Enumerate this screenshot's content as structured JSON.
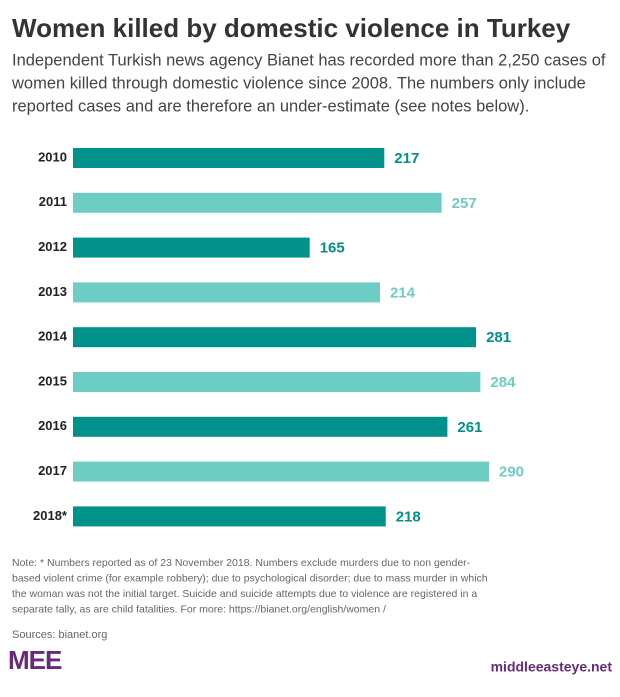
{
  "chart_data": {
    "type": "bar",
    "orientation": "horizontal",
    "title": "Women killed by domestic violence in Turkey",
    "subtitle": [
      "Independent Turkish news agency Bianet has recorded more than 2,250 cases of",
      "women killed through domestic violence since 2008. The numbers only include",
      "reported cases and are therefore an under-estimate (see notes below)."
    ],
    "categories": [
      "2010",
      "2011",
      "2012",
      "2013",
      "2014",
      "2015",
      "2016",
      "2017",
      "2018*"
    ],
    "values": [
      217,
      257,
      165,
      214,
      281,
      284,
      261,
      290,
      218
    ],
    "colors": [
      "#00918a",
      "#6dcdc4",
      "#00918a",
      "#6dcdc4",
      "#00918a",
      "#6dcdc4",
      "#00918a",
      "#6dcdc4",
      "#00918a"
    ],
    "note": [
      "Note: * Numbers reported as of 23 November 2018. Numbers exclude murders due to non gender-",
      "based violent crime (for example robbery); due to psychological disorder; due to mass murder in which",
      "the woman was not the initial target. Suicide and suicide attempts due to violence are registered in a",
      "separate tally, as are child fatalities. For more: https://bianet.org/english/women /"
    ],
    "source": "Sources: bianet.org",
    "logo": "MEE",
    "website": "middleeasteye.net"
  }
}
